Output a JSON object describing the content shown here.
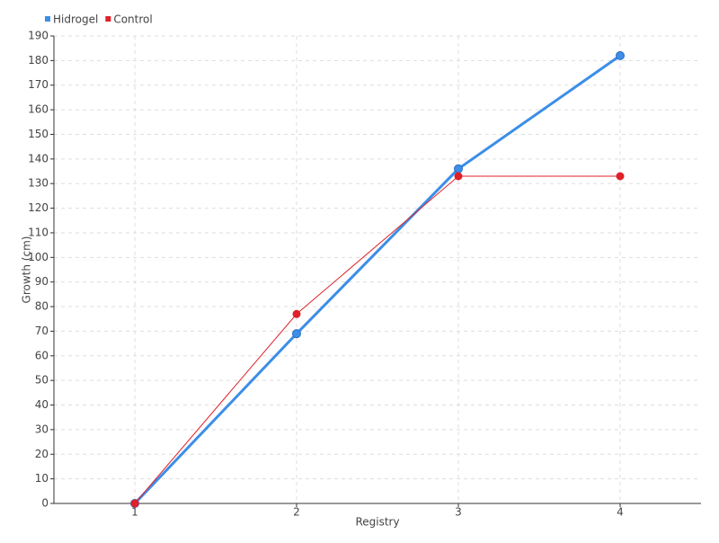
{
  "chart_data": {
    "type": "line",
    "x_label": "Registry",
    "y_label": "Growth (cm)",
    "x": [
      1,
      2,
      3,
      4
    ],
    "xlim": [
      0.5,
      4.5
    ],
    "xticks": [
      1,
      2,
      3,
      4
    ],
    "ylim": [
      0,
      190
    ],
    "yticks": [
      0,
      10,
      20,
      30,
      40,
      50,
      60,
      70,
      80,
      90,
      100,
      110,
      120,
      130,
      140,
      150,
      160,
      170,
      180,
      190
    ],
    "grid": true,
    "legend": "top-left",
    "series": [
      {
        "name": "Hidrogel",
        "color": "#3c8ee8",
        "values": [
          0,
          69,
          136,
          182
        ]
      },
      {
        "name": "Control",
        "color": "#e0202a",
        "values": [
          0,
          77,
          133,
          133
        ]
      }
    ]
  }
}
